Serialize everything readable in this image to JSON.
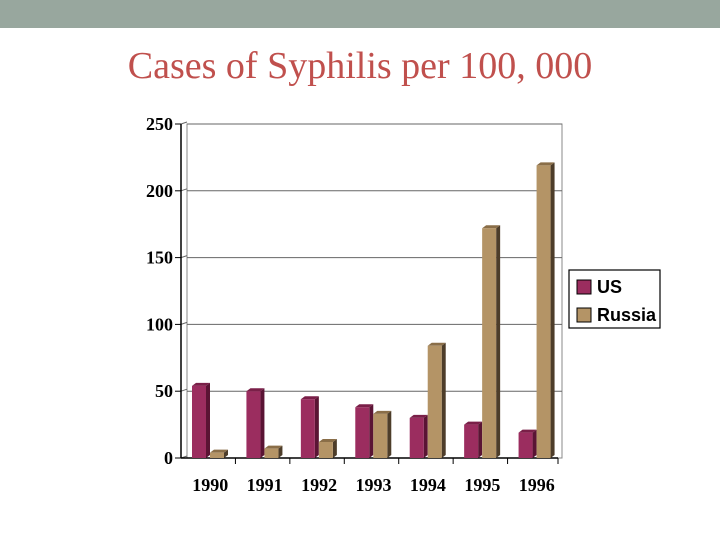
{
  "slide": {
    "title": "Cases of Syphilis per 100, 000"
  },
  "colors": {
    "band": "#98a79e",
    "title": "#c0504d",
    "us_front": "#9b2d5f",
    "us_side": "#5a1434",
    "us_top": "#7a1f48",
    "russia_front": "#b49466",
    "russia_side": "#4d3d2a",
    "russia_top": "#8a6e48"
  },
  "chart_data": {
    "type": "bar",
    "categories": [
      "1990",
      "1991",
      "1992",
      "1993",
      "1994",
      "1995",
      "1996"
    ],
    "series": [
      {
        "name": "US",
        "values": [
          54,
          50,
          44,
          38,
          30,
          25,
          19
        ]
      },
      {
        "name": "Russia",
        "values": [
          4,
          7,
          12,
          33,
          84,
          172,
          219
        ]
      }
    ],
    "y_ticks": [
      "0",
      "50",
      "100",
      "150",
      "200",
      "250"
    ],
    "ylim": [
      0,
      250
    ],
    "grid": true,
    "legend": "right",
    "title": "Cases of Syphilis per 100, 000",
    "xlabel": "",
    "ylabel": ""
  }
}
